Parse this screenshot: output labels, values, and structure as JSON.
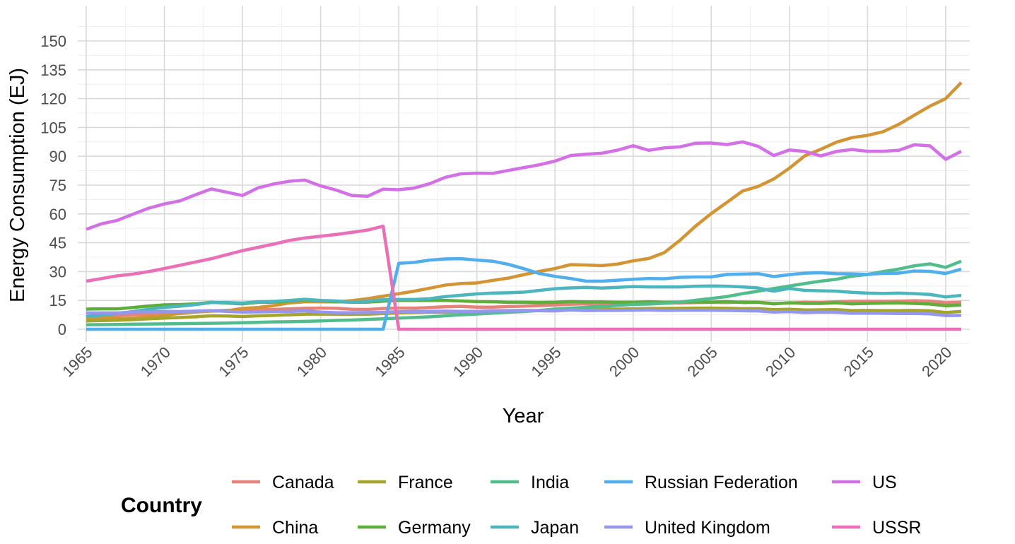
{
  "chart_data": {
    "type": "line",
    "xlabel": "Year",
    "ylabel": "Energy Consumption (EJ)",
    "xlim": [
      1965,
      2021
    ],
    "ylim": [
      -4,
      159
    ],
    "x_ticks": [
      1965,
      1970,
      1975,
      1980,
      1985,
      1990,
      1995,
      2000,
      2005,
      2010,
      2015,
      2020
    ],
    "y_ticks": [
      0,
      15,
      30,
      45,
      60,
      75,
      90,
      105,
      120,
      135,
      150
    ],
    "grid": true,
    "legend": {
      "title": "Country",
      "placement": "bottom"
    },
    "x": [
      1965,
      1966,
      1967,
      1968,
      1969,
      1970,
      1971,
      1972,
      1973,
      1974,
      1975,
      1976,
      1977,
      1978,
      1979,
      1980,
      1981,
      1982,
      1983,
      1984,
      1985,
      1986,
      1987,
      1988,
      1989,
      1990,
      1991,
      1992,
      1993,
      1994,
      1995,
      1996,
      1997,
      1998,
      1999,
      2000,
      2001,
      2002,
      2003,
      2004,
      2005,
      2006,
      2007,
      2008,
      2009,
      2010,
      2011,
      2012,
      2013,
      2014,
      2015,
      2016,
      2017,
      2018,
      2019,
      2020,
      2021
    ],
    "series": [
      {
        "name": "Canada",
        "color": "#E68613",
        "color_hex": "#E7827A",
        "values": [
          6.6,
          6.9,
          7.2,
          7.6,
          8.0,
          8.4,
          8.7,
          9.2,
          9.6,
          9.8,
          9.8,
          10.1,
          10.3,
          10.6,
          10.9,
          11.0,
          10.9,
          10.4,
          10.3,
          10.8,
          11.0,
          11.0,
          11.3,
          11.7,
          11.9,
          11.5,
          11.5,
          11.8,
          12.0,
          12.3,
          12.6,
          13.0,
          13.2,
          13.0,
          13.3,
          13.6,
          13.3,
          13.5,
          13.7,
          13.9,
          14.0,
          13.9,
          14.2,
          14.0,
          13.4,
          13.6,
          14.0,
          13.9,
          14.3,
          14.5,
          14.5,
          14.5,
          14.6,
          14.8,
          14.6,
          13.8,
          14.0
        ]
      },
      {
        "name": "China",
        "color": "#D39434",
        "values": [
          5.5,
          6.0,
          5.6,
          5.8,
          6.5,
          7.3,
          8.2,
          8.9,
          9.4,
          9.6,
          10.8,
          11.3,
          12.3,
          13.7,
          14.3,
          14.3,
          14.2,
          14.9,
          15.9,
          17.2,
          18.5,
          19.8,
          21.4,
          23.0,
          23.8,
          24.1,
          25.4,
          26.6,
          28.4,
          30.1,
          31.6,
          33.6,
          33.4,
          33.1,
          33.9,
          35.6,
          36.8,
          39.9,
          46.3,
          53.7,
          60.2,
          66.0,
          71.9,
          74.3,
          78.2,
          83.8,
          90.3,
          93.6,
          97.3,
          99.7,
          100.9,
          102.8,
          106.6,
          111.4,
          116.1,
          120.0,
          128.4
        ]
      },
      {
        "name": "France",
        "color": "#A5A52B",
        "values": [
          4.3,
          4.5,
          4.7,
          5.0,
          5.4,
          5.8,
          6.1,
          6.5,
          7.0,
          6.9,
          6.6,
          7.0,
          7.2,
          7.5,
          7.8,
          7.9,
          7.8,
          7.7,
          7.8,
          8.2,
          8.5,
          8.7,
          8.9,
          8.8,
          9.1,
          9.2,
          9.6,
          9.7,
          9.8,
          9.7,
          9.9,
          10.3,
          10.2,
          10.4,
          10.5,
          10.6,
          10.8,
          10.8,
          10.9,
          11.0,
          11.0,
          10.9,
          10.7,
          10.7,
          10.2,
          10.4,
          10.0,
          10.1,
          10.2,
          9.7,
          9.8,
          9.7,
          9.7,
          9.8,
          9.6,
          8.7,
          9.3
        ]
      },
      {
        "name": "Germany",
        "color": "#5DAE3A",
        "values": [
          10.5,
          10.6,
          10.6,
          11.3,
          12.1,
          12.7,
          12.8,
          13.2,
          14.0,
          13.6,
          13.2,
          14.0,
          14.1,
          14.6,
          15.3,
          14.8,
          14.4,
          14.0,
          14.1,
          14.6,
          15.0,
          15.0,
          15.0,
          15.0,
          14.7,
          14.4,
          14.3,
          14.0,
          14.0,
          13.9,
          14.0,
          14.4,
          14.2,
          14.2,
          14.0,
          14.0,
          14.3,
          14.0,
          14.1,
          14.2,
          14.1,
          14.4,
          13.9,
          14.0,
          13.2,
          13.8,
          13.4,
          13.4,
          13.8,
          13.2,
          13.4,
          13.6,
          13.7,
          13.4,
          13.1,
          12.2,
          12.6
        ]
      },
      {
        "name": "India",
        "color": "#52BD8C",
        "values": [
          2.3,
          2.4,
          2.5,
          2.6,
          2.7,
          2.8,
          2.9,
          3.0,
          3.1,
          3.2,
          3.4,
          3.6,
          3.8,
          3.9,
          4.1,
          4.3,
          4.6,
          4.8,
          5.1,
          5.4,
          5.8,
          6.1,
          6.5,
          7.0,
          7.5,
          7.9,
          8.4,
          8.8,
          9.2,
          9.8,
          10.5,
          11.0,
          11.4,
          11.8,
          12.4,
          12.9,
          13.1,
          13.5,
          14.1,
          15.1,
          16.0,
          17.0,
          18.5,
          19.8,
          21.2,
          22.5,
          23.8,
          25.0,
          26.0,
          27.6,
          28.5,
          30.0,
          31.3,
          33.0,
          34.0,
          32.2,
          35.4
        ]
      },
      {
        "name": "Japan",
        "color": "#4CB6BE",
        "values": [
          6.7,
          7.3,
          8.2,
          9.2,
          10.4,
          11.4,
          12.0,
          12.8,
          13.9,
          13.9,
          13.6,
          14.3,
          14.5,
          15.0,
          15.6,
          15.0,
          14.7,
          14.2,
          14.5,
          15.4,
          15.5,
          15.5,
          15.9,
          17.0,
          17.7,
          18.4,
          18.8,
          19.0,
          19.3,
          20.2,
          21.1,
          21.5,
          21.8,
          21.4,
          21.8,
          22.2,
          22.0,
          22.0,
          22.0,
          22.4,
          22.5,
          22.4,
          22.0,
          21.5,
          19.8,
          21.2,
          20.2,
          20.0,
          19.8,
          19.2,
          18.8,
          18.6,
          18.8,
          18.5,
          18.1,
          16.8,
          17.6
        ]
      },
      {
        "name": "Russian Federation",
        "color": "#4FAEEB",
        "values": [
          0,
          0,
          0,
          0,
          0,
          0,
          0,
          0,
          0,
          0,
          0,
          0,
          0,
          0,
          0,
          0,
          0,
          0,
          0,
          0,
          34.3,
          34.8,
          36.0,
          36.6,
          36.7,
          36.0,
          35.4,
          33.8,
          31.5,
          29.0,
          27.5,
          26.4,
          25.0,
          25.0,
          25.5,
          26.0,
          26.4,
          26.3,
          27.0,
          27.2,
          27.2,
          28.5,
          28.7,
          28.9,
          27.4,
          28.4,
          29.2,
          29.4,
          28.9,
          28.8,
          28.5,
          29.1,
          29.2,
          30.3,
          30.1,
          29.0,
          31.3
        ]
      },
      {
        "name": "United Kingdom",
        "color": "#9596EE",
        "values": [
          8.5,
          8.5,
          8.5,
          8.8,
          9.0,
          9.3,
          9.2,
          9.4,
          9.7,
          9.3,
          8.9,
          9.0,
          9.2,
          9.2,
          9.6,
          8.9,
          8.6,
          8.6,
          8.7,
          8.8,
          9.1,
          9.3,
          9.3,
          9.4,
          9.3,
          9.3,
          9.5,
          9.5,
          9.6,
          9.6,
          9.5,
          10.0,
          9.7,
          9.8,
          9.8,
          9.9,
          10.0,
          9.8,
          9.9,
          9.9,
          9.9,
          9.8,
          9.6,
          9.5,
          8.9,
          9.2,
          8.7,
          8.9,
          8.8,
          8.3,
          8.4,
          8.3,
          8.2,
          8.2,
          8.0,
          7.1,
          7.2
        ]
      },
      {
        "name": "US",
        "color": "#D470E6",
        "values": [
          52.0,
          54.9,
          56.7,
          59.9,
          63.0,
          65.2,
          66.8,
          70.0,
          73.0,
          71.3,
          69.6,
          73.6,
          75.6,
          77.0,
          77.6,
          74.6,
          72.4,
          69.6,
          69.2,
          72.9,
          72.6,
          73.5,
          75.8,
          79.1,
          80.9,
          81.2,
          81.1,
          82.6,
          84.1,
          85.6,
          87.5,
          90.4,
          91.1,
          91.6,
          93.2,
          95.5,
          93.1,
          94.4,
          94.9,
          96.8,
          96.9,
          96.1,
          97.5,
          95.2,
          90.4,
          93.3,
          92.5,
          90.2,
          92.5,
          93.5,
          92.6,
          92.6,
          93.1,
          96.0,
          95.4,
          88.4,
          92.6
        ]
      },
      {
        "name": "USSR",
        "color": "#EA6FB8",
        "values": [
          25.0,
          26.4,
          27.8,
          28.7,
          30.0,
          31.6,
          33.3,
          35.0,
          36.7,
          38.8,
          40.9,
          42.6,
          44.3,
          46.2,
          47.5,
          48.4,
          49.3,
          50.4,
          51.6,
          53.6,
          0,
          0,
          0,
          0,
          0,
          0,
          0,
          0,
          0,
          0,
          0,
          0,
          0,
          0,
          0,
          0,
          0,
          0,
          0,
          0,
          0,
          0,
          0,
          0,
          0,
          0,
          0,
          0,
          0,
          0,
          0,
          0,
          0,
          0,
          0,
          0,
          0
        ]
      }
    ]
  }
}
